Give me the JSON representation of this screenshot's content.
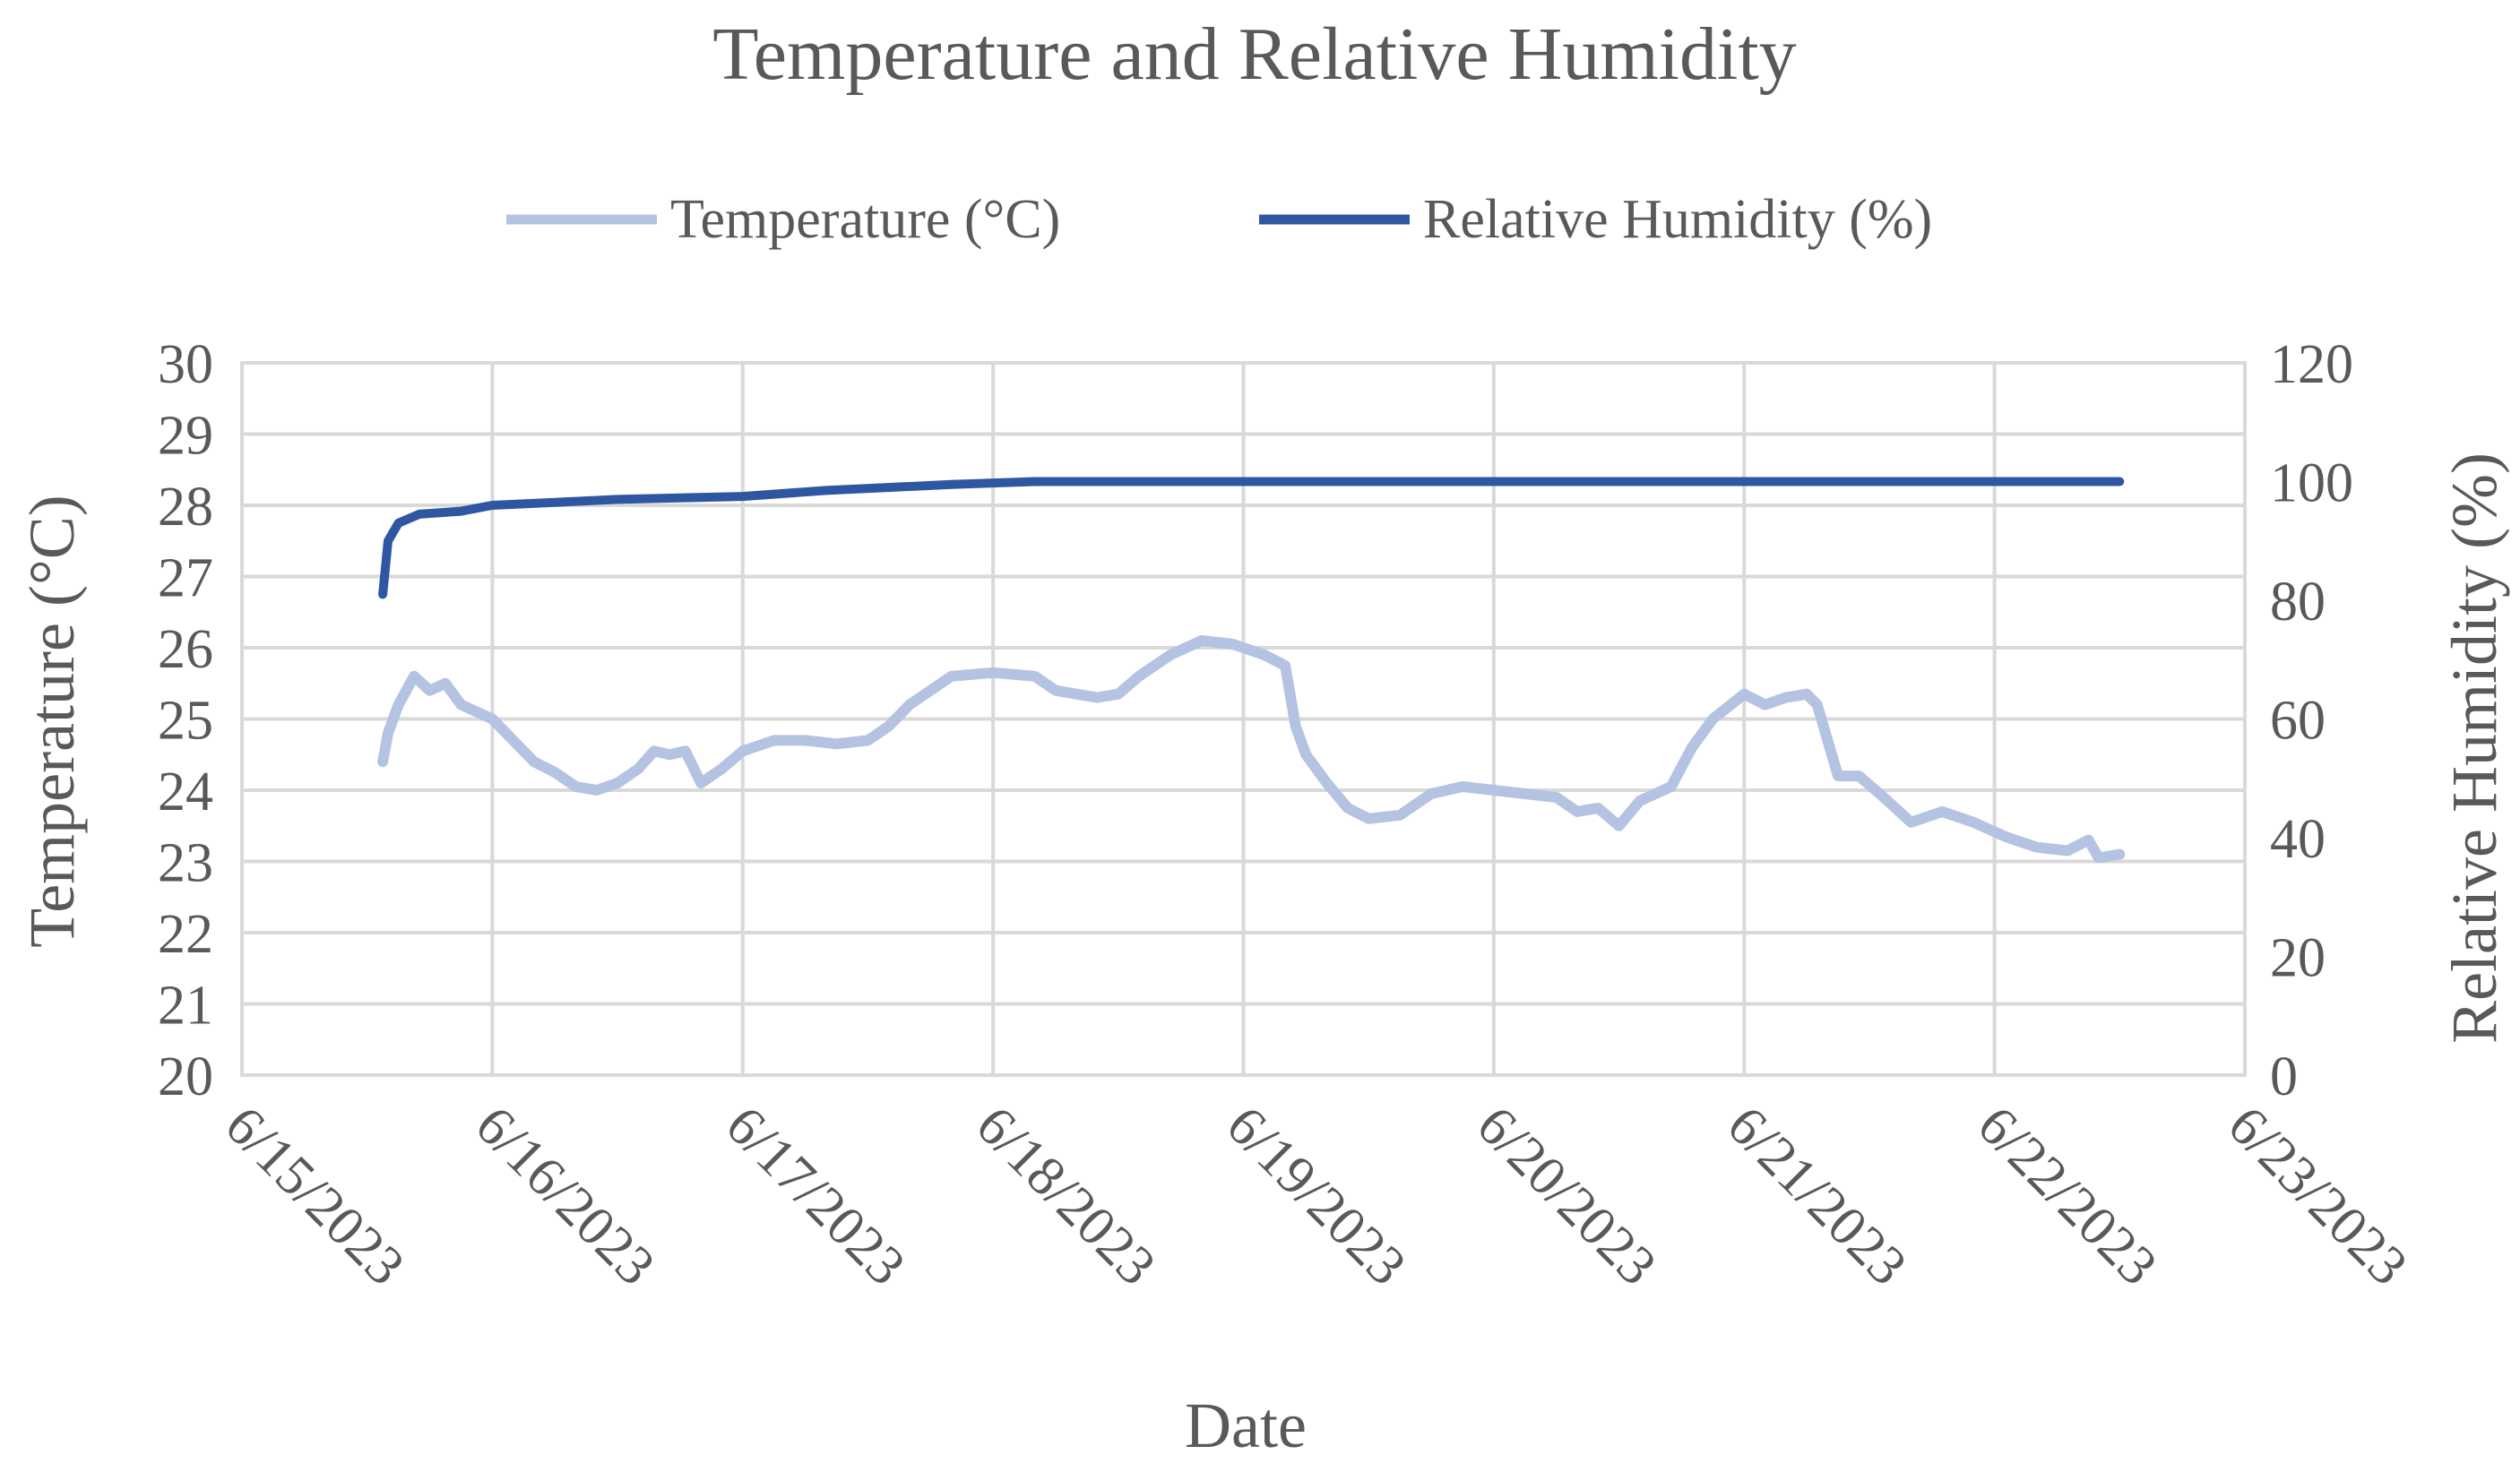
{
  "chart_data": {
    "type": "line",
    "title": "Temperature and Relative Humidity",
    "xlabel": "Date",
    "ylabel_left": "Temperature (°C)",
    "ylabel_right": "Relative Humidity (%)",
    "x_ticks": [
      "6/15/2023",
      "6/16/2023",
      "6/17/2023",
      "6/18/2023",
      "6/19/2023",
      "6/20/2023",
      "6/21/2023",
      "6/22/2023",
      "6/23/2023"
    ],
    "xlim": [
      "2023-06-15",
      "2023-06-23"
    ],
    "ylim_left": [
      20,
      30
    ],
    "ylim_right": [
      0,
      120
    ],
    "y_ticks_left": [
      20,
      21,
      22,
      23,
      24,
      25,
      26,
      27,
      28,
      29,
      30
    ],
    "y_ticks_right": [
      0,
      20,
      40,
      60,
      80,
      100,
      120
    ],
    "grid": true,
    "legend_position": "top",
    "series": [
      {
        "name": "Temperature (°C)",
        "axis": "left",
        "color": "#b4c3e1",
        "points": [
          [
            "2023-06-15 13:30",
            24.4
          ],
          [
            "2023-06-15 14:00",
            24.8
          ],
          [
            "2023-06-15 15:00",
            25.2
          ],
          [
            "2023-06-15 16:30",
            25.6
          ],
          [
            "2023-06-15 18:00",
            25.4
          ],
          [
            "2023-06-15 19:30",
            25.5
          ],
          [
            "2023-06-15 21:00",
            25.2
          ],
          [
            "2023-06-16 00:00",
            25.0
          ],
          [
            "2023-06-16 02:00",
            24.7
          ],
          [
            "2023-06-16 04:00",
            24.4
          ],
          [
            "2023-06-16 06:00",
            24.25
          ],
          [
            "2023-06-16 08:00",
            24.05
          ],
          [
            "2023-06-16 10:00",
            24.0
          ],
          [
            "2023-06-16 12:00",
            24.1
          ],
          [
            "2023-06-16 14:00",
            24.3
          ],
          [
            "2023-06-16 15:30",
            24.55
          ],
          [
            "2023-06-16 17:00",
            24.5
          ],
          [
            "2023-06-16 18:30",
            24.55
          ],
          [
            "2023-06-16 20:00",
            24.1
          ],
          [
            "2023-06-16 22:00",
            24.3
          ],
          [
            "2023-06-17 00:00",
            24.55
          ],
          [
            "2023-06-17 03:00",
            24.7
          ],
          [
            "2023-06-17 06:00",
            24.7
          ],
          [
            "2023-06-17 09:00",
            24.65
          ],
          [
            "2023-06-17 12:00",
            24.7
          ],
          [
            "2023-06-17 14:00",
            24.9
          ],
          [
            "2023-06-17 16:00",
            25.2
          ],
          [
            "2023-06-17 18:00",
            25.4
          ],
          [
            "2023-06-17 20:00",
            25.6
          ],
          [
            "2023-06-18 00:00",
            25.65
          ],
          [
            "2023-06-18 04:00",
            25.6
          ],
          [
            "2023-06-18 06:00",
            25.4
          ],
          [
            "2023-06-18 08:00",
            25.35
          ],
          [
            "2023-06-18 10:00",
            25.3
          ],
          [
            "2023-06-18 12:00",
            25.35
          ],
          [
            "2023-06-18 14:00",
            25.6
          ],
          [
            "2023-06-18 17:00",
            25.9
          ],
          [
            "2023-06-18 20:00",
            26.1
          ],
          [
            "2023-06-18 23:00",
            26.05
          ],
          [
            "2023-06-19 02:00",
            25.9
          ],
          [
            "2023-06-19 04:00",
            25.75
          ],
          [
            "2023-06-19 05:00",
            24.9
          ],
          [
            "2023-06-19 06:00",
            24.5
          ],
          [
            "2023-06-19 08:00",
            24.1
          ],
          [
            "2023-06-19 10:00",
            23.75
          ],
          [
            "2023-06-19 12:00",
            23.6
          ],
          [
            "2023-06-19 15:00",
            23.65
          ],
          [
            "2023-06-19 18:00",
            23.95
          ],
          [
            "2023-06-19 21:00",
            24.05
          ],
          [
            "2023-06-20 00:00",
            24.0
          ],
          [
            "2023-06-20 03:00",
            23.95
          ],
          [
            "2023-06-20 06:00",
            23.9
          ],
          [
            "2023-06-20 08:00",
            23.7
          ],
          [
            "2023-06-20 10:00",
            23.75
          ],
          [
            "2023-06-20 12:00",
            23.5
          ],
          [
            "2023-06-20 14:00",
            23.85
          ],
          [
            "2023-06-20 17:00",
            24.05
          ],
          [
            "2023-06-20 19:00",
            24.6
          ],
          [
            "2023-06-20 21:00",
            25.0
          ],
          [
            "2023-06-21 00:00",
            25.35
          ],
          [
            "2023-06-21 02:00",
            25.2
          ],
          [
            "2023-06-21 04:00",
            25.3
          ],
          [
            "2023-06-21 06:00",
            25.35
          ],
          [
            "2023-06-21 07:00",
            25.2
          ],
          [
            "2023-06-21 09:00",
            24.2
          ],
          [
            "2023-06-21 11:00",
            24.2
          ],
          [
            "2023-06-21 13:00",
            23.95
          ],
          [
            "2023-06-21 16:00",
            23.55
          ],
          [
            "2023-06-21 19:00",
            23.7
          ],
          [
            "2023-06-21 22:00",
            23.55
          ],
          [
            "2023-06-22 01:00",
            23.35
          ],
          [
            "2023-06-22 04:00",
            23.2
          ],
          [
            "2023-06-22 07:00",
            23.15
          ],
          [
            "2023-06-22 09:00",
            23.3
          ],
          [
            "2023-06-22 10:00",
            23.05
          ],
          [
            "2023-06-22 12:00",
            23.1
          ]
        ]
      },
      {
        "name": "Relative Humidity (%)",
        "axis": "right",
        "color": "#2e56a1",
        "points": [
          [
            "2023-06-15 13:30",
            81
          ],
          [
            "2023-06-15 14:00",
            90
          ],
          [
            "2023-06-15 15:00",
            93
          ],
          [
            "2023-06-15 17:00",
            94.5
          ],
          [
            "2023-06-15 21:00",
            95
          ],
          [
            "2023-06-16 00:00",
            96
          ],
          [
            "2023-06-16 06:00",
            96.5
          ],
          [
            "2023-06-16 12:00",
            97
          ],
          [
            "2023-06-17 00:00",
            97.5
          ],
          [
            "2023-06-17 08:00",
            98.5
          ],
          [
            "2023-06-17 20:00",
            99.5
          ],
          [
            "2023-06-18 04:00",
            100
          ],
          [
            "2023-06-19 00:00",
            100
          ],
          [
            "2023-06-20 00:00",
            100
          ],
          [
            "2023-06-21 00:00",
            100
          ],
          [
            "2023-06-22 12:00",
            100
          ]
        ]
      }
    ]
  }
}
